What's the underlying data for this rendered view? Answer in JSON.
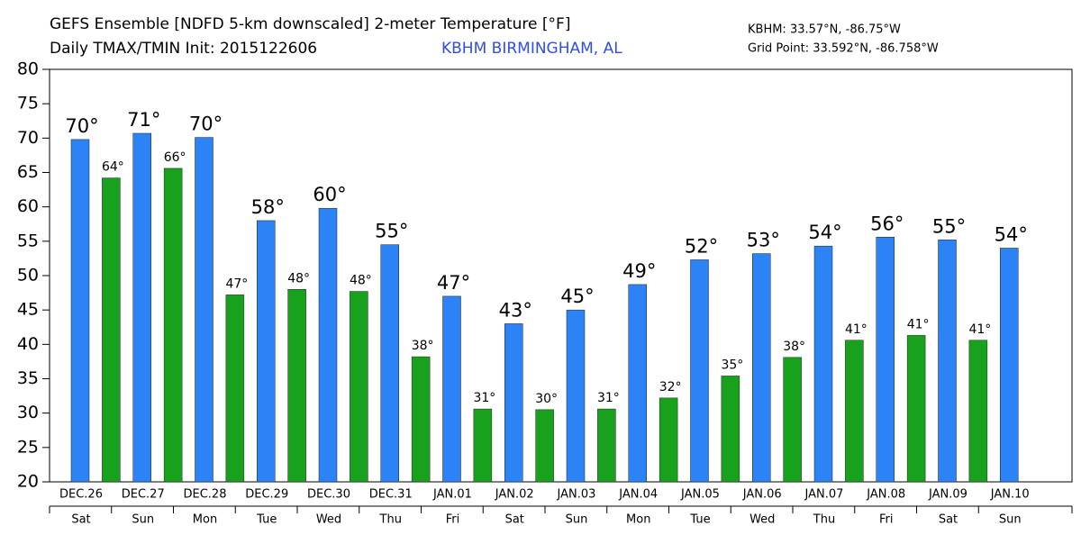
{
  "chart_data": {
    "type": "bar",
    "title": "GEFS Ensemble [NDFD 5-km downscaled] 2-meter Temperature [°F]",
    "subtitle": "Daily TMAX/TMIN Init: 2015122606",
    "station": "KBHM BIRMINGHAM, AL",
    "station_coords": "KBHM: 33.57°N, -86.75°W",
    "grid_point": "Grid Point: 33.592°N, -86.758°W",
    "categories": [
      "DEC.26",
      "DEC.27",
      "DEC.28",
      "DEC.29",
      "DEC.30",
      "DEC.31",
      "JAN.01",
      "JAN.02",
      "JAN.03",
      "JAN.04",
      "JAN.05",
      "JAN.06",
      "JAN.07",
      "JAN.08",
      "JAN.09",
      "JAN.10"
    ],
    "weekdays": [
      "Sat",
      "Sun",
      "Mon",
      "Tue",
      "Wed",
      "Thu",
      "Fri",
      "Sat",
      "Sun",
      "Mon",
      "Tue",
      "Wed",
      "Thu",
      "Fri",
      "Sat",
      "Sun"
    ],
    "series": [
      {
        "color": "#2b83f6",
        "values": [
          69.8,
          70.7,
          70.1,
          58,
          59.8,
          54.5,
          47,
          43,
          45,
          48.7,
          52.3,
          53.2,
          54.3,
          55.6,
          55.2,
          54
        ],
        "value_labels": [
          "70°",
          "71°",
          "70°",
          "58°",
          "60°",
          "55°",
          "47°",
          "43°",
          "45°",
          "49°",
          "52°",
          "53°",
          "54°",
          "56°",
          "55°",
          "54°"
        ]
      },
      {
        "color": "#17a11d",
        "values": [
          64.2,
          65.6,
          47.2,
          48,
          47.7,
          38.2,
          30.6,
          30.5,
          30.6,
          32.2,
          35.4,
          38.1,
          40.6,
          41.3,
          40.6,
          null
        ],
        "value_labels": [
          "64°",
          "66°",
          "47°",
          "48°",
          "48°",
          "38°",
          "31°",
          "30°",
          "31°",
          "32°",
          "35°",
          "38°",
          "41°",
          "41°",
          "41°",
          null
        ]
      }
    ],
    "ylim": [
      20,
      80
    ],
    "yticks": [
      20,
      25,
      30,
      35,
      40,
      45,
      50,
      55,
      60,
      65,
      70,
      75,
      80
    ],
    "grid": false
  }
}
